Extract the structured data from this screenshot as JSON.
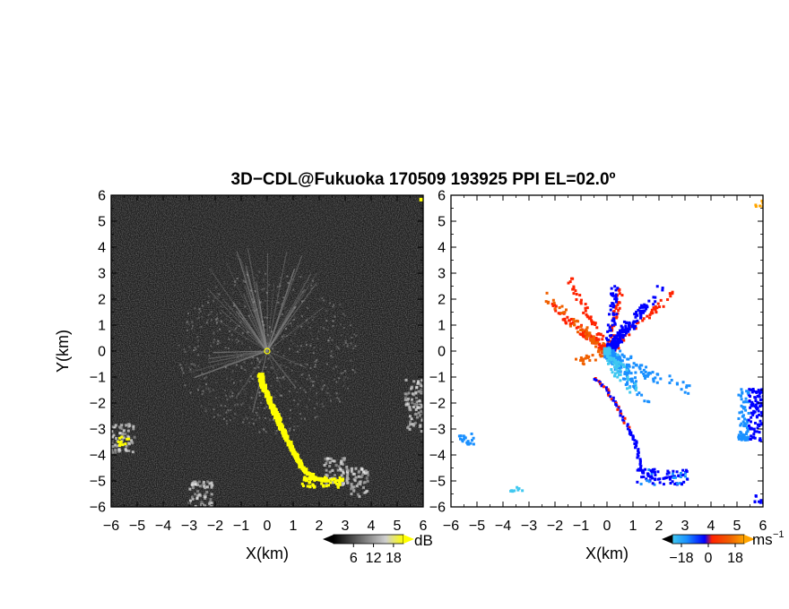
{
  "title": "3D−CDL@Fukuoka 170509 193925 PPI EL=02.0º",
  "chart_data": [
    {
      "type": "heatmap",
      "panel": "reflectivity",
      "xlabel": "X(km)",
      "ylabel": "Y(km)",
      "xlim": [
        -6,
        6
      ],
      "ylim": [
        -6,
        6
      ],
      "xticks": [
        "−6",
        "−5",
        "−4",
        "−3",
        "−2",
        "−1",
        "0",
        "1",
        "2",
        "3",
        "4",
        "5",
        "6"
      ],
      "yticks": [
        "−6",
        "−5",
        "−4",
        "−3",
        "−2",
        "−1",
        "0",
        "1",
        "2",
        "3",
        "4",
        "5",
        "6"
      ],
      "colorbar": {
        "unit": "dB",
        "ticks": [
          "6",
          "12",
          "18"
        ],
        "range": [
          0,
          21
        ]
      },
      "colors": {
        "background": "#1a1a1a",
        "clutter": "#9a9a9a",
        "strong": "#ffff00"
      },
      "features": [
        {
          "name": "yellow-trail",
          "points": [
            [
              -0.3,
              -0.9
            ],
            [
              -0.2,
              -1.3
            ],
            [
              0.0,
              -1.7
            ],
            [
              0.2,
              -2.2
            ],
            [
              0.4,
              -2.7
            ],
            [
              0.7,
              -3.3
            ],
            [
              1.0,
              -3.9
            ],
            [
              1.3,
              -4.5
            ],
            [
              1.8,
              -4.9
            ],
            [
              2.3,
              -5.0
            ]
          ]
        },
        {
          "name": "bright-clutter",
          "points": [
            [
              5.7,
              -1.6
            ],
            [
              5.8,
              -2.5
            ],
            [
              -5.6,
              -3.3
            ],
            [
              2.6,
              -4.6
            ],
            [
              3.4,
              -5.0
            ],
            [
              -2.6,
              -5.5
            ]
          ]
        }
      ]
    },
    {
      "type": "heatmap",
      "panel": "doppler-velocity",
      "xlabel": "X(km)",
      "ylabel": "",
      "xlim": [
        -6,
        6
      ],
      "ylim": [
        -6,
        6
      ],
      "xticks": [
        "−6",
        "−5",
        "−4",
        "−3",
        "−2",
        "−1",
        "0",
        "1",
        "2",
        "3",
        "4",
        "5",
        "6"
      ],
      "yticks": [
        "−6",
        "−5",
        "−4",
        "−3",
        "−2",
        "−1",
        "0",
        "1",
        "2",
        "3",
        "4",
        "5",
        "6"
      ],
      "colorbar": {
        "unit": "ms",
        "unit_exponent": "−1",
        "ticks": [
          "−18",
          "0",
          "18"
        ],
        "range": [
          -24,
          24
        ]
      },
      "colors": {
        "approaching_strong": "#0000ff",
        "approaching": "#1a90ff",
        "approaching_weak": "#40c8f0",
        "receding": "#ff2200",
        "receding_strong": "#f06000",
        "receding_far": "#ffa500"
      },
      "features": [
        {
          "name": "blue-northeast-rays",
          "points": [
            [
              0.2,
              0.3
            ],
            [
              0.8,
              1.2
            ],
            [
              1.5,
              1.8
            ],
            [
              2.0,
              2.4
            ],
            [
              0.3,
              2.6
            ]
          ]
        },
        {
          "name": "red-northwest-rays",
          "points": [
            [
              -0.2,
              0.2
            ],
            [
              -1.0,
              0.8
            ],
            [
              -2.2,
              1.8
            ],
            [
              -1.5,
              2.8
            ],
            [
              0.5,
              2.5
            ],
            [
              2.5,
              2.3
            ]
          ]
        },
        {
          "name": "light-blue-southeast",
          "points": [
            [
              0.3,
              -0.3
            ],
            [
              1.0,
              -1.2
            ],
            [
              1.8,
              -1.0
            ],
            [
              3.2,
              -1.5
            ],
            [
              1.5,
              -2.0
            ]
          ]
        },
        {
          "name": "trail-red-blue",
          "points": [
            [
              -0.5,
              -1.0
            ],
            [
              0.0,
              -1.5
            ],
            [
              0.4,
              -2.2
            ],
            [
              0.8,
              -3.0
            ],
            [
              1.1,
              -3.6
            ],
            [
              1.2,
              -4.5
            ],
            [
              1.8,
              -4.9
            ],
            [
              3.0,
              -4.7
            ]
          ]
        },
        {
          "name": "east-blue-cluster",
          "points": [
            [
              5.5,
              -1.5
            ],
            [
              5.7,
              -2.5
            ],
            [
              5.5,
              -3.2
            ],
            [
              5.7,
              -5.6
            ]
          ]
        }
      ]
    }
  ]
}
